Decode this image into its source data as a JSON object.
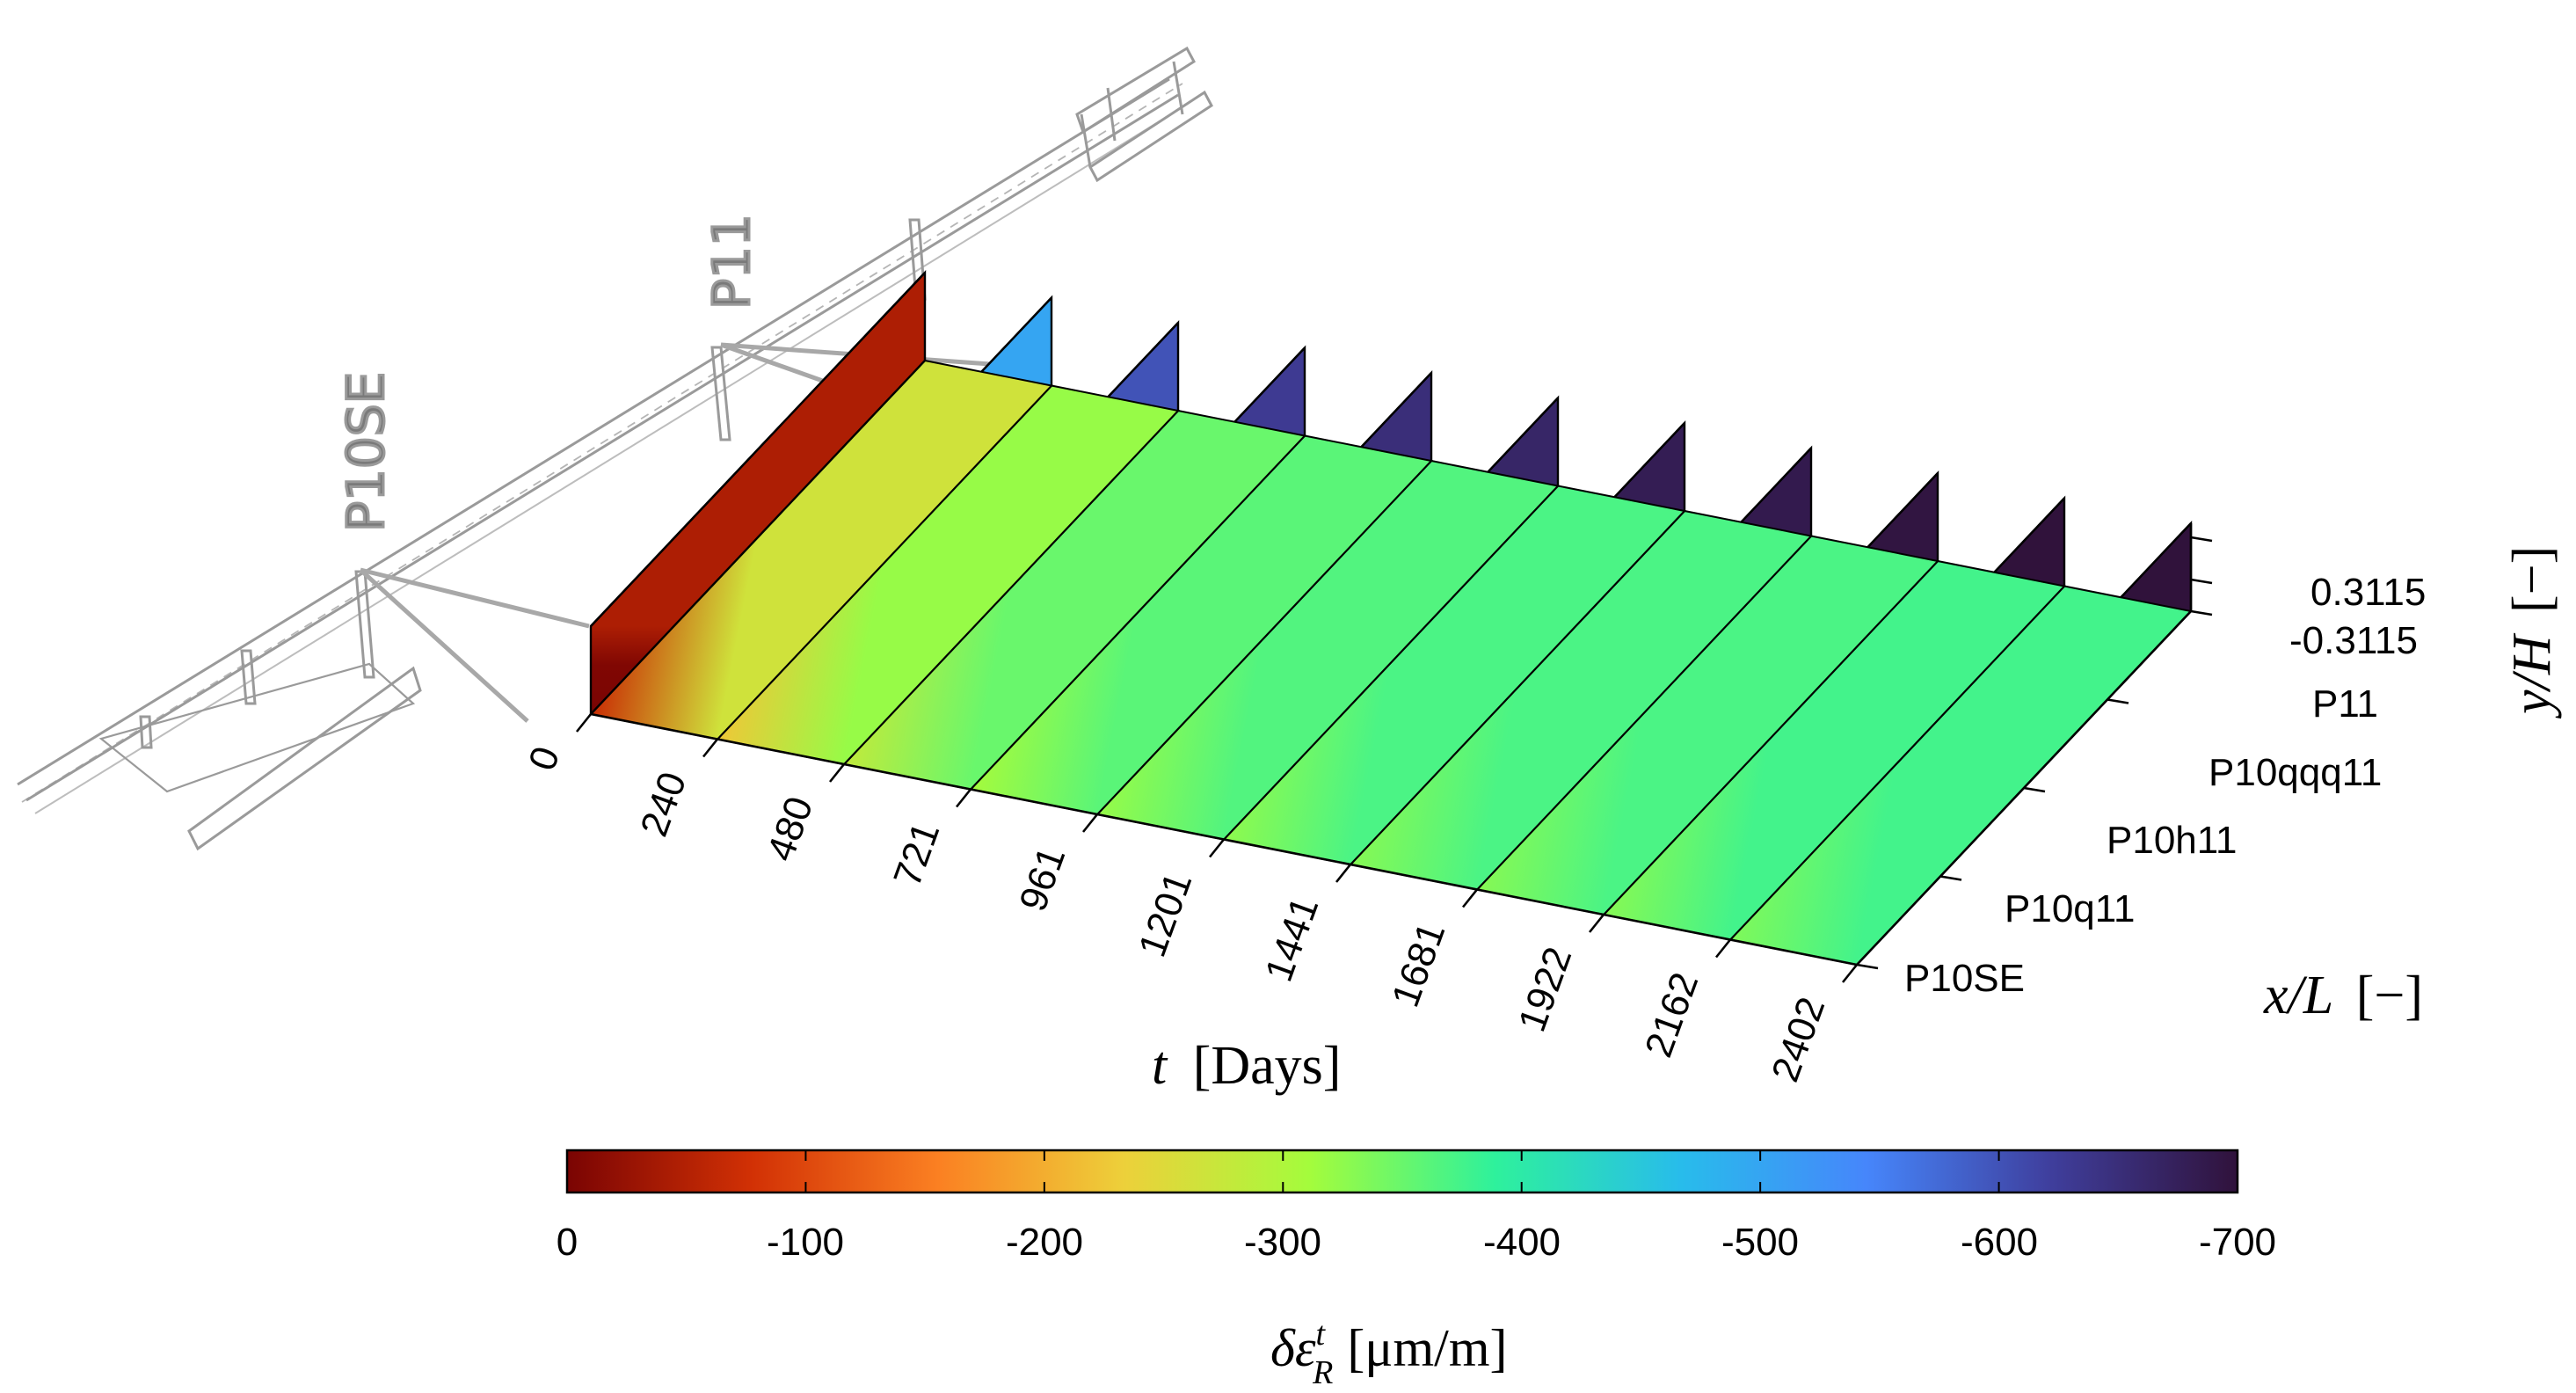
{
  "chart_data": {
    "type": "heatmap",
    "title": "",
    "bridge_labels": [
      "P10SE",
      "P11"
    ],
    "t_axis": {
      "label_var": "t",
      "label_unit": "[Days]",
      "ticks": [
        "0",
        "240",
        "480",
        "721",
        "961",
        "1201",
        "1441",
        "1681",
        "1922",
        "2162",
        "2402"
      ]
    },
    "x_axis": {
      "label_var": "x/L",
      "label_unit": "[−]",
      "ticks": [
        "P10SE",
        "P10q11",
        "P10h11",
        "P10qqq11",
        "P11"
      ]
    },
    "y_axis": {
      "label_var": "y/H",
      "label_unit": "[−]",
      "ticks": [
        "0.3115",
        "-0.3115"
      ],
      "range": [
        -0.3115,
        0.3115
      ]
    },
    "colorbar": {
      "label_main": "δε",
      "label_sup": "t",
      "label_sub": "R",
      "label_unit": "[μm/m]",
      "range": [
        0,
        -700
      ],
      "ticks": [
        "0",
        "-100",
        "-200",
        "-300",
        "-400",
        "-500",
        "-600",
        "-700"
      ],
      "colormap": [
        "#7a0403",
        "#d23105",
        "#fb8022",
        "#edd03a",
        "#a4fc3c",
        "#2ef19c",
        "#28bceb",
        "#4686fb",
        "#3f3e9c",
        "#30123b"
      ]
    },
    "snapshots": [
      {
        "t": 0,
        "front_mean": -5,
        "top_mean": -110
      },
      {
        "t": 240,
        "front_mean": -460,
        "top_mean": -265
      },
      {
        "t": 480,
        "front_mean": -560,
        "top_mean": -320
      },
      {
        "t": 721,
        "front_mean": -590,
        "top_mean": -350
      },
      {
        "t": 961,
        "front_mean": -610,
        "top_mean": -360
      },
      {
        "t": 1201,
        "front_mean": -625,
        "top_mean": -365
      },
      {
        "t": 1441,
        "front_mean": -640,
        "top_mean": -370
      },
      {
        "t": 1681,
        "front_mean": -645,
        "top_mean": -370
      },
      {
        "t": 1922,
        "front_mean": -655,
        "top_mean": -370
      },
      {
        "t": 2162,
        "front_mean": -660,
        "top_mean": -375
      },
      {
        "t": 2402,
        "front_mean": -665,
        "top_mean": -375
      }
    ]
  }
}
